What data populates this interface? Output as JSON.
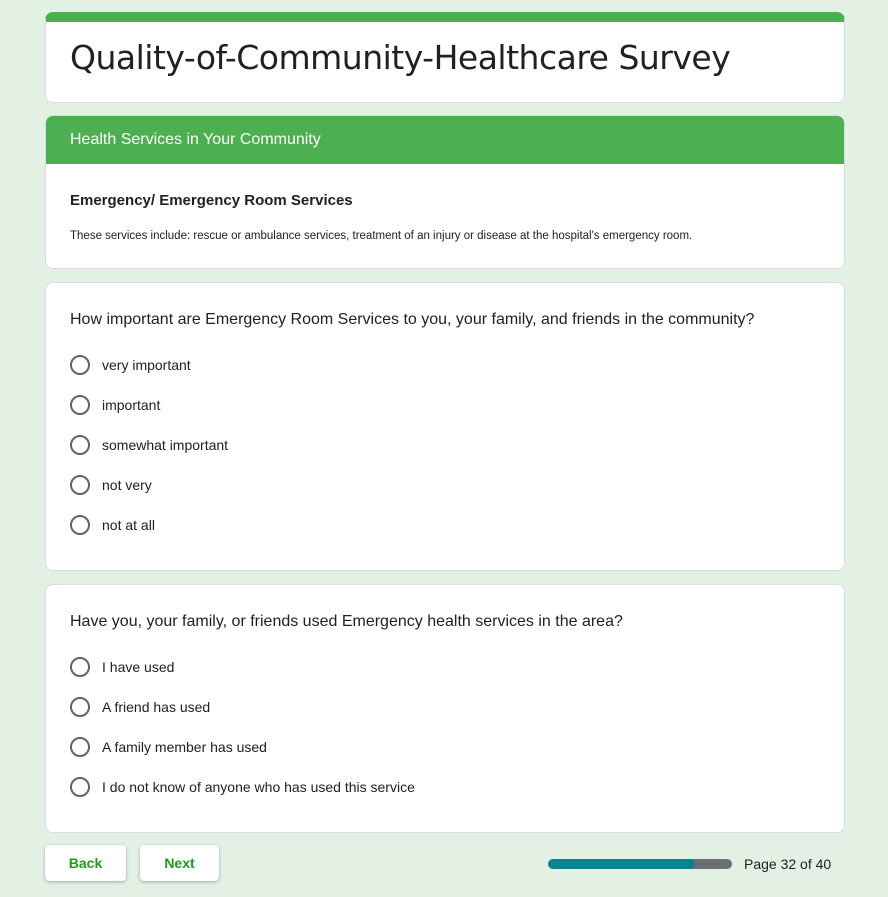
{
  "form": {
    "title": "Quality-of-Community-Healthcare Survey",
    "accent": "#4caf50"
  },
  "section": {
    "header": "Health Services in Your Community",
    "title": "Emergency/ Emergency Room Services",
    "description": "These services include: rescue or ambulance services, treatment of an injury or disease at the hospital's emergency room."
  },
  "questions": [
    {
      "text": "How important are Emergency Room Services to you, your family, and friends in the community?",
      "options": [
        "very important",
        "important",
        "somewhat important",
        "not very",
        "not at all"
      ]
    },
    {
      "text": "Have you, your family, or friends used Emergency health services in the area?",
      "options": [
        "I have used",
        "A friend has used",
        "A family member has used",
        "I do not know of anyone who has used this service"
      ]
    }
  ],
  "nav": {
    "back": "Back",
    "next": "Next",
    "page_label": "Page 32 of 40",
    "progress_percent": 80
  }
}
